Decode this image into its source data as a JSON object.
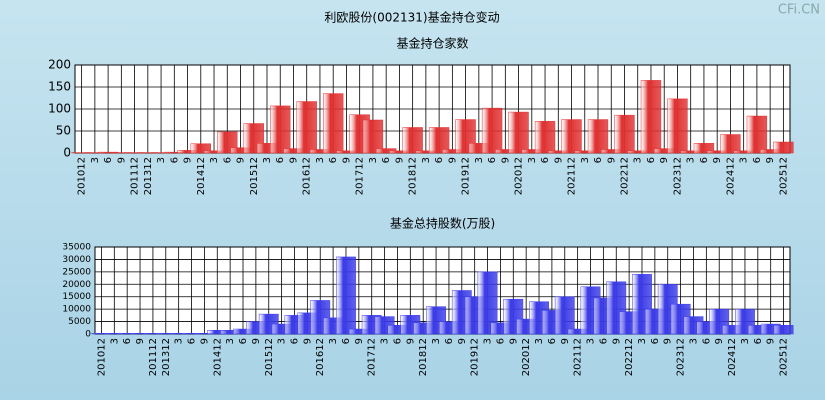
{
  "title": "利欧股份(002131)基金持仓变动",
  "watermark": "CFi.CN",
  "chart_data": [
    {
      "type": "bar",
      "title": "基金持仓家数",
      "color": "#e03030",
      "grid": true,
      "categories": [
        "201012",
        "3",
        "6",
        "9",
        "201112",
        "201312",
        "3",
        "6",
        "9",
        "201412",
        "3",
        "6",
        "9",
        "201512",
        "3",
        "6",
        "9",
        "201612",
        "3",
        "6",
        "9",
        "201712",
        "3",
        "6",
        "9",
        "201812",
        "3",
        "6",
        "9",
        "201912",
        "3",
        "6",
        "9",
        "202012",
        "3",
        "6",
        "9",
        "202112",
        "3",
        "6",
        "9",
        "202212",
        "3",
        "6",
        "9",
        "202312",
        "3",
        "6",
        "9",
        "202412",
        "3",
        "6",
        "9",
        "202512"
      ],
      "values": [
        1,
        1,
        2,
        1,
        1,
        1,
        1,
        2,
        6,
        21,
        5,
        48,
        12,
        67,
        22,
        107,
        10,
        117,
        8,
        135,
        5,
        87,
        75,
        10,
        5,
        58,
        5,
        58,
        8,
        76,
        22,
        102,
        8,
        93,
        8,
        72,
        5,
        76,
        5,
        76,
        8,
        86,
        5,
        165,
        10,
        123,
        5,
        22,
        5,
        42,
        5,
        84,
        8,
        25
      ],
      "ylim": [
        0,
        200
      ],
      "yticks": [
        0,
        50,
        100,
        150,
        200
      ]
    },
    {
      "type": "bar",
      "title": "基金总持股数(万股)",
      "color": "#3a3ae8",
      "grid": true,
      "categories": [
        "201012",
        "3",
        "6",
        "9",
        "201112",
        "201312",
        "3",
        "6",
        "9",
        "201412",
        "3",
        "6",
        "9",
        "201512",
        "3",
        "6",
        "9",
        "201612",
        "3",
        "6",
        "9",
        "201712",
        "3",
        "6",
        "9",
        "201812",
        "3",
        "6",
        "9",
        "201912",
        "3",
        "6",
        "9",
        "202012",
        "3",
        "6",
        "9",
        "202112",
        "3",
        "6",
        "9",
        "202212",
        "3",
        "6",
        "9",
        "202312",
        "3",
        "6",
        "9",
        "202412",
        "3",
        "6",
        "9",
        "202512"
      ],
      "values": [
        300,
        300,
        300,
        300,
        300,
        300,
        300,
        300,
        300,
        1500,
        1500,
        2000,
        5000,
        8000,
        4000,
        7500,
        8500,
        13500,
        6500,
        31000,
        2000,
        7500,
        7000,
        3500,
        7500,
        4500,
        11000,
        5000,
        17500,
        15000,
        25000,
        4500,
        14000,
        6000,
        13000,
        9500,
        15000,
        2000,
        19000,
        14500,
        21000,
        9000,
        24000,
        10000,
        20000,
        12000,
        7000,
        5000,
        10000,
        3500,
        10000,
        3500,
        4000,
        3500
      ],
      "ylim": [
        0,
        35000
      ],
      "yticks": [
        0,
        5000,
        10000,
        15000,
        20000,
        25000,
        30000,
        35000
      ]
    }
  ]
}
